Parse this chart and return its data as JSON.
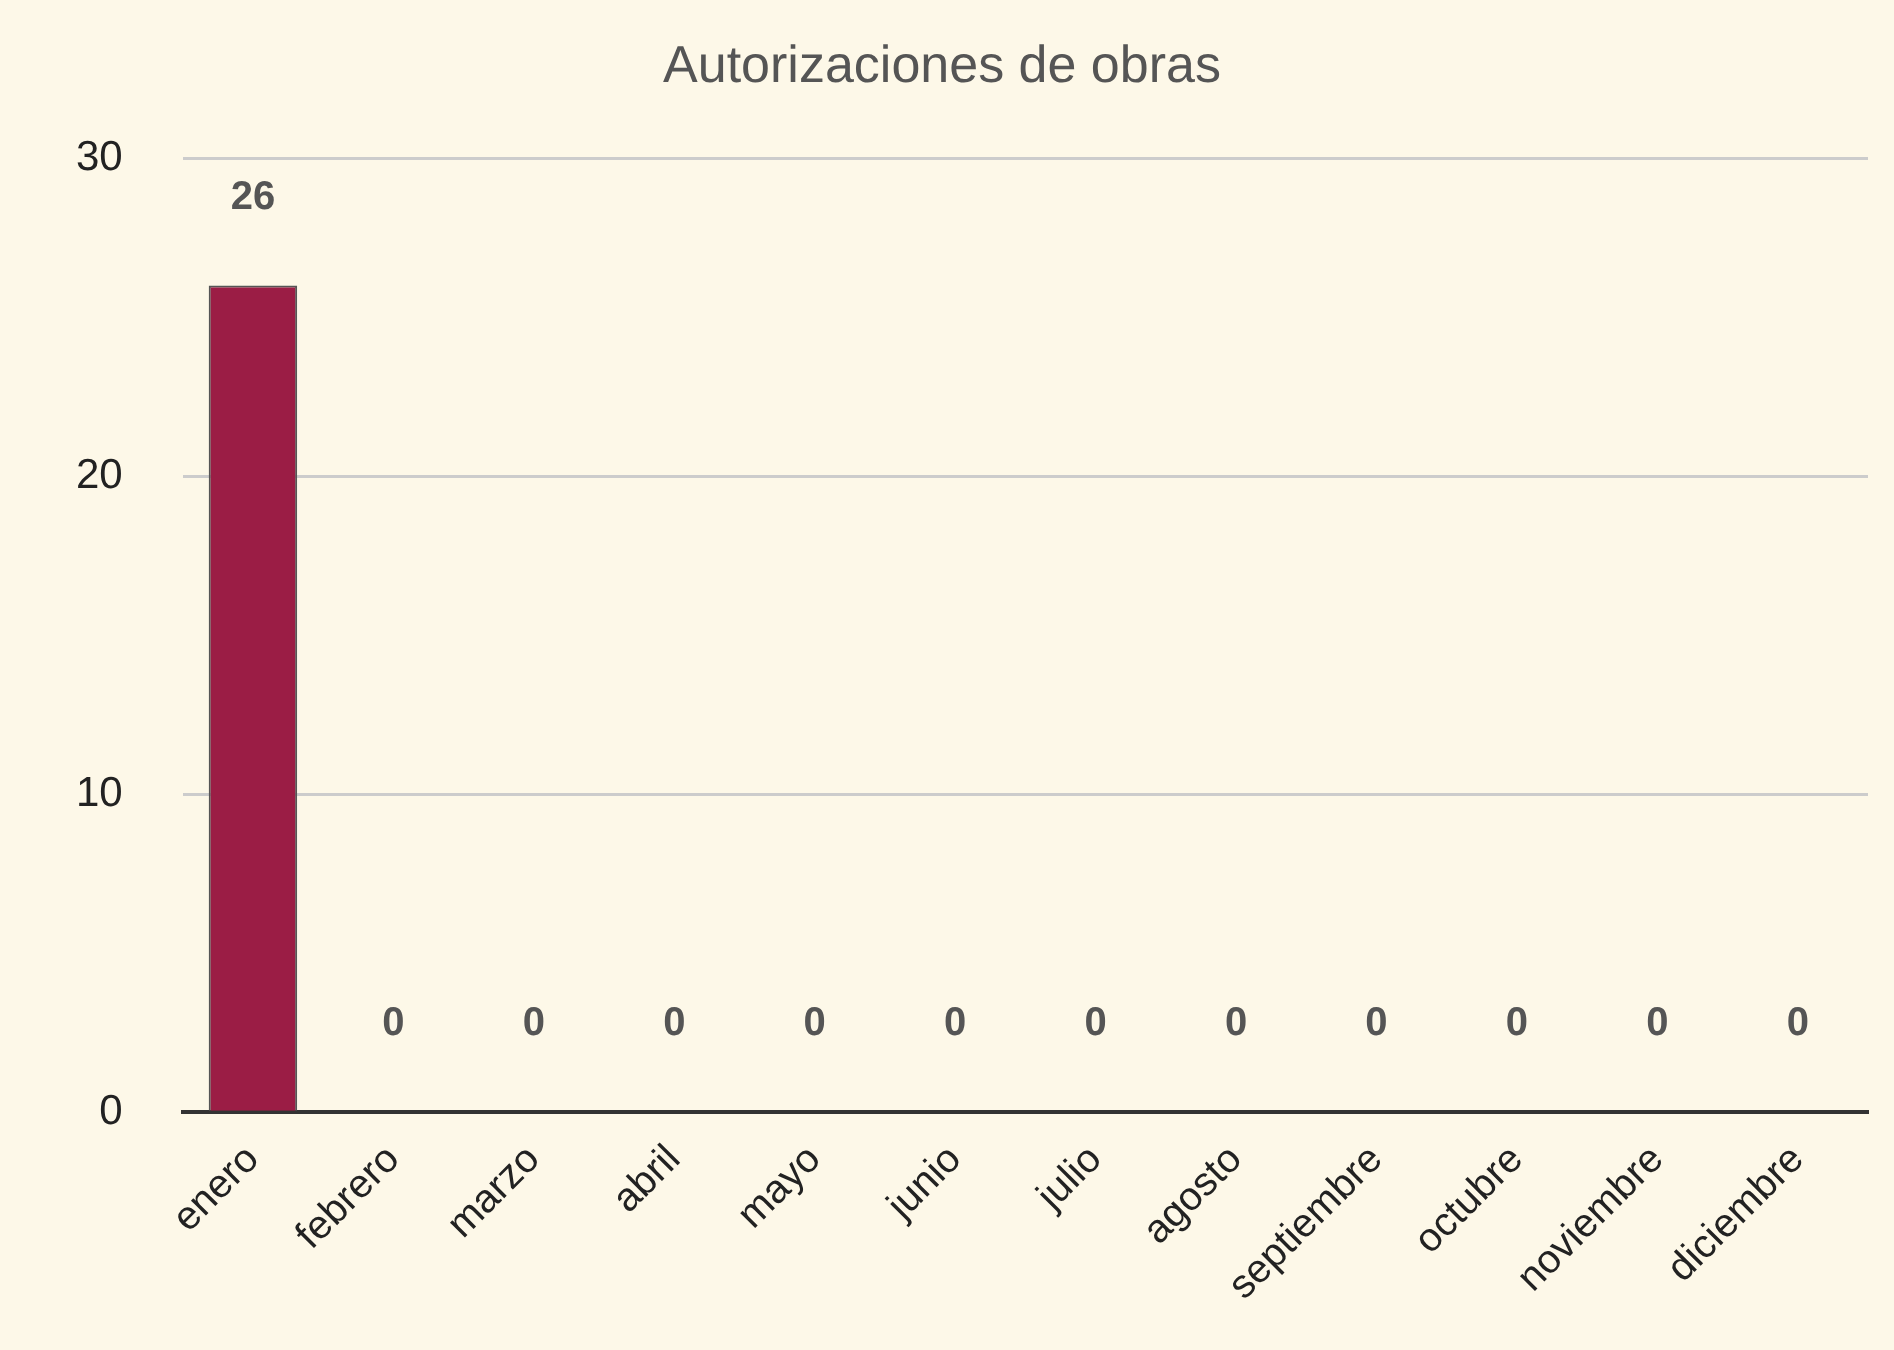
{
  "chart_data": {
    "type": "bar",
    "title": "Autorizaciones de obras",
    "categories": [
      "enero",
      "febrero",
      "marzo",
      "abril",
      "mayo",
      "junio",
      "julio",
      "agosto",
      "septiembre",
      "octubre",
      "noviembre",
      "diciembre"
    ],
    "values": [
      26,
      0,
      0,
      0,
      0,
      0,
      0,
      0,
      0,
      0,
      0,
      0
    ],
    "color": "#9b1d45",
    "ylim": [
      0,
      30
    ],
    "yticks": [
      0,
      10,
      20,
      30
    ],
    "grid": "y",
    "data_labels": true
  }
}
